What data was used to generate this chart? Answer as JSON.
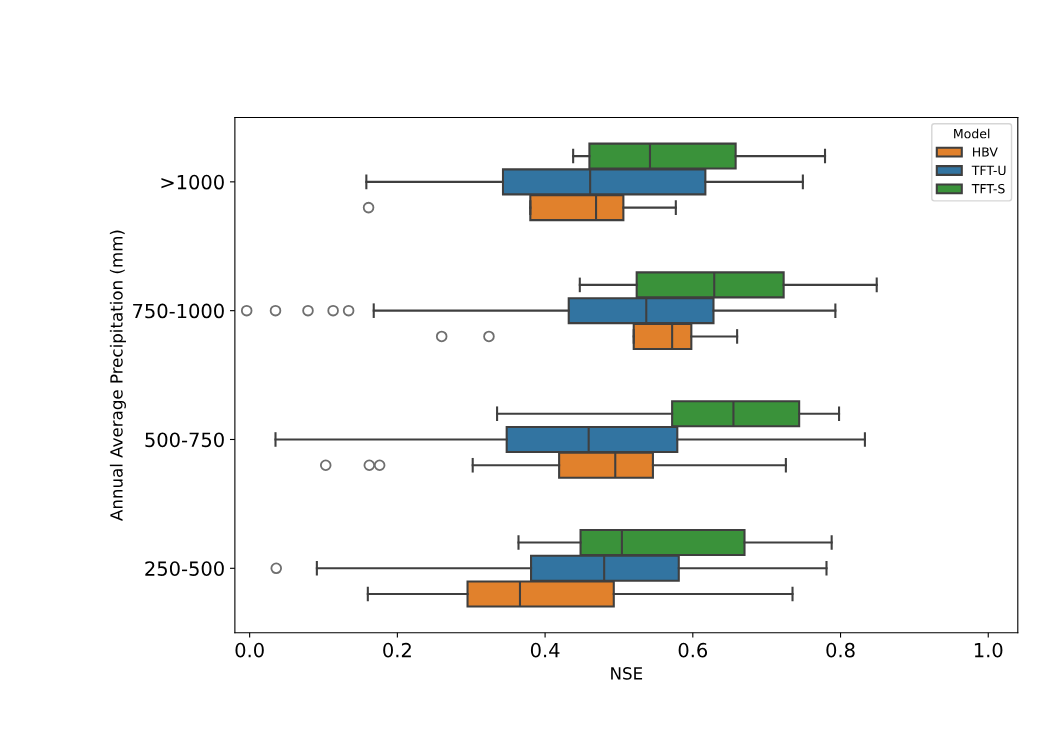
{
  "chart_data": {
    "type": "box",
    "orientation": "horizontal",
    "xlabel": "NSE",
    "ylabel": "Annual Average Precipitation (mm)",
    "legend_title": "Model",
    "legend": "top right",
    "grid": false,
    "categories": [
      ">1000",
      "750-1000",
      "500-750",
      "250-500"
    ],
    "xlim": [
      -0.02,
      1.04
    ],
    "xticks": [
      {
        "value": 0,
        "label": "0.0"
      },
      {
        "value": 0.2,
        "label": "0.2"
      },
      {
        "value": 0.4,
        "label": "0.4"
      },
      {
        "value": 0.6,
        "label": "0.6"
      },
      {
        "value": 0.8,
        "label": "0.8"
      },
      {
        "value": 1,
        "label": "1.0"
      }
    ],
    "series": [
      {
        "name": "HBV",
        "color": "#e1812c",
        "boxes": [
          {
            "low": 0.38,
            "q1": 0.38,
            "median": 0.469,
            "q3": 0.506,
            "high": 0.577,
            "outliers": [
              0.161
            ]
          },
          {
            "low": 0.52,
            "q1": 0.52,
            "median": 0.572,
            "q3": 0.598,
            "high": 0.66,
            "outliers": [
              0.26,
              0.324
            ]
          },
          {
            "low": 0.302,
            "q1": 0.419,
            "median": 0.495,
            "q3": 0.546,
            "high": 0.726,
            "outliers": [
              0.103,
              0.162,
              0.176
            ]
          },
          {
            "low": 0.16,
            "q1": 0.295,
            "median": 0.366,
            "q3": 0.493,
            "high": 0.735
          }
        ]
      },
      {
        "name": "TFT-U",
        "color": "#3274a1",
        "boxes": [
          {
            "low": 0.158,
            "q1": 0.343,
            "median": 0.461,
            "q3": 0.617,
            "high": 0.749
          },
          {
            "low": 0.168,
            "q1": 0.432,
            "median": 0.537,
            "q3": 0.628,
            "high": 0.793,
            "outliers": [
              -0.004,
              0.035,
              0.079,
              0.113,
              0.134
            ]
          },
          {
            "low": 0.035,
            "q1": 0.348,
            "median": 0.459,
            "q3": 0.579,
            "high": 0.833
          },
          {
            "low": 0.091,
            "q1": 0.381,
            "median": 0.48,
            "q3": 0.581,
            "high": 0.781,
            "outliers": [
              0.036
            ]
          }
        ]
      },
      {
        "name": "TFT-S",
        "color": "#3a923a",
        "boxes": [
          {
            "low": 0.438,
            "q1": 0.46,
            "median": 0.542,
            "q3": 0.658,
            "high": 0.779
          },
          {
            "low": 0.447,
            "q1": 0.524,
            "median": 0.629,
            "q3": 0.723,
            "high": 0.849
          },
          {
            "low": 0.335,
            "q1": 0.572,
            "median": 0.655,
            "q3": 0.744,
            "high": 0.798
          },
          {
            "low": 0.364,
            "q1": 0.448,
            "median": 0.504,
            "q3": 0.67,
            "high": 0.788
          }
        ]
      }
    ]
  }
}
